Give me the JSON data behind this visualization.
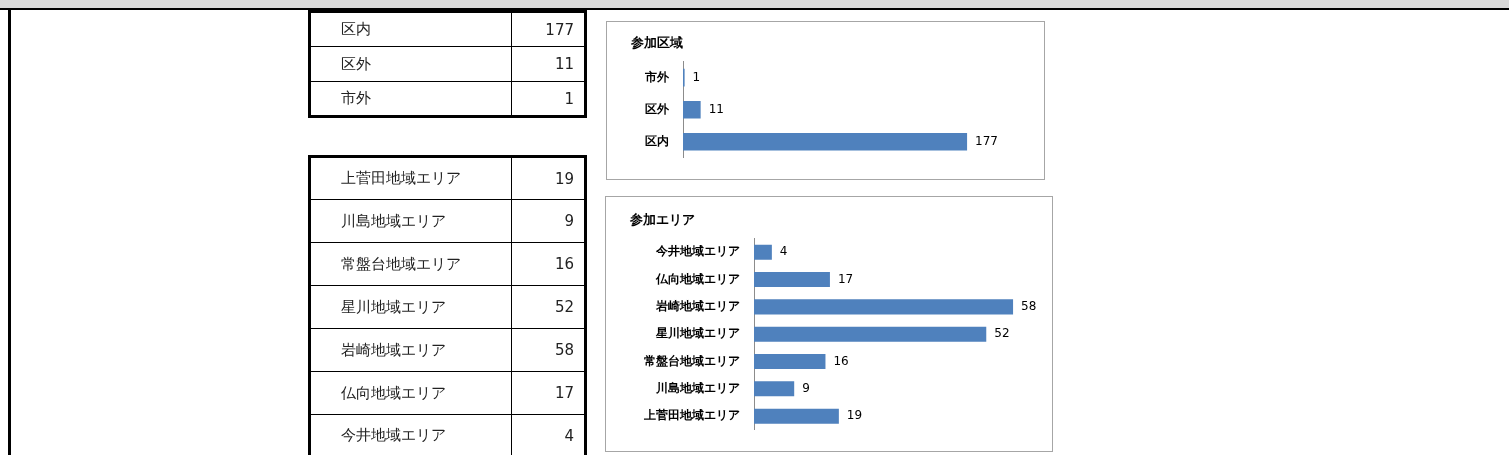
{
  "chart_data": [
    {
      "type": "other",
      "annotations": [
        "区内",
        "177",
        "区外",
        "11",
        "市外",
        "1"
      ]
    },
    {
      "type": "bar",
      "orientation": "horizontal",
      "title": "参加区域",
      "categories": [
        "市外",
        "区外",
        "区内"
      ],
      "values": [
        1,
        11,
        177
      ],
      "color": "#4f81bd",
      "data_labels": true
    },
    {
      "type": "other",
      "annotations": [
        "上菅田地域エリア",
        "19",
        "川島地域エリア",
        "9",
        "常盤台地域エリア",
        "16",
        "星川地域エリア",
        "52",
        "岩崎地域エリア",
        "58",
        "仏向地域エリア",
        "17",
        "今井地域エリア",
        "4"
      ]
    },
    {
      "type": "bar",
      "orientation": "horizontal",
      "title": "参加エリア",
      "categories": [
        "今井地域エリア",
        "仏向地域エリア",
        "岩崎地域エリア",
        "星川地域エリア",
        "常盤台地域エリア",
        "川島地域エリア",
        "上菅田地域エリア"
      ],
      "values": [
        4,
        17,
        58,
        52,
        16,
        9,
        19
      ],
      "color": "#4f81bd",
      "data_labels": true
    }
  ]
}
